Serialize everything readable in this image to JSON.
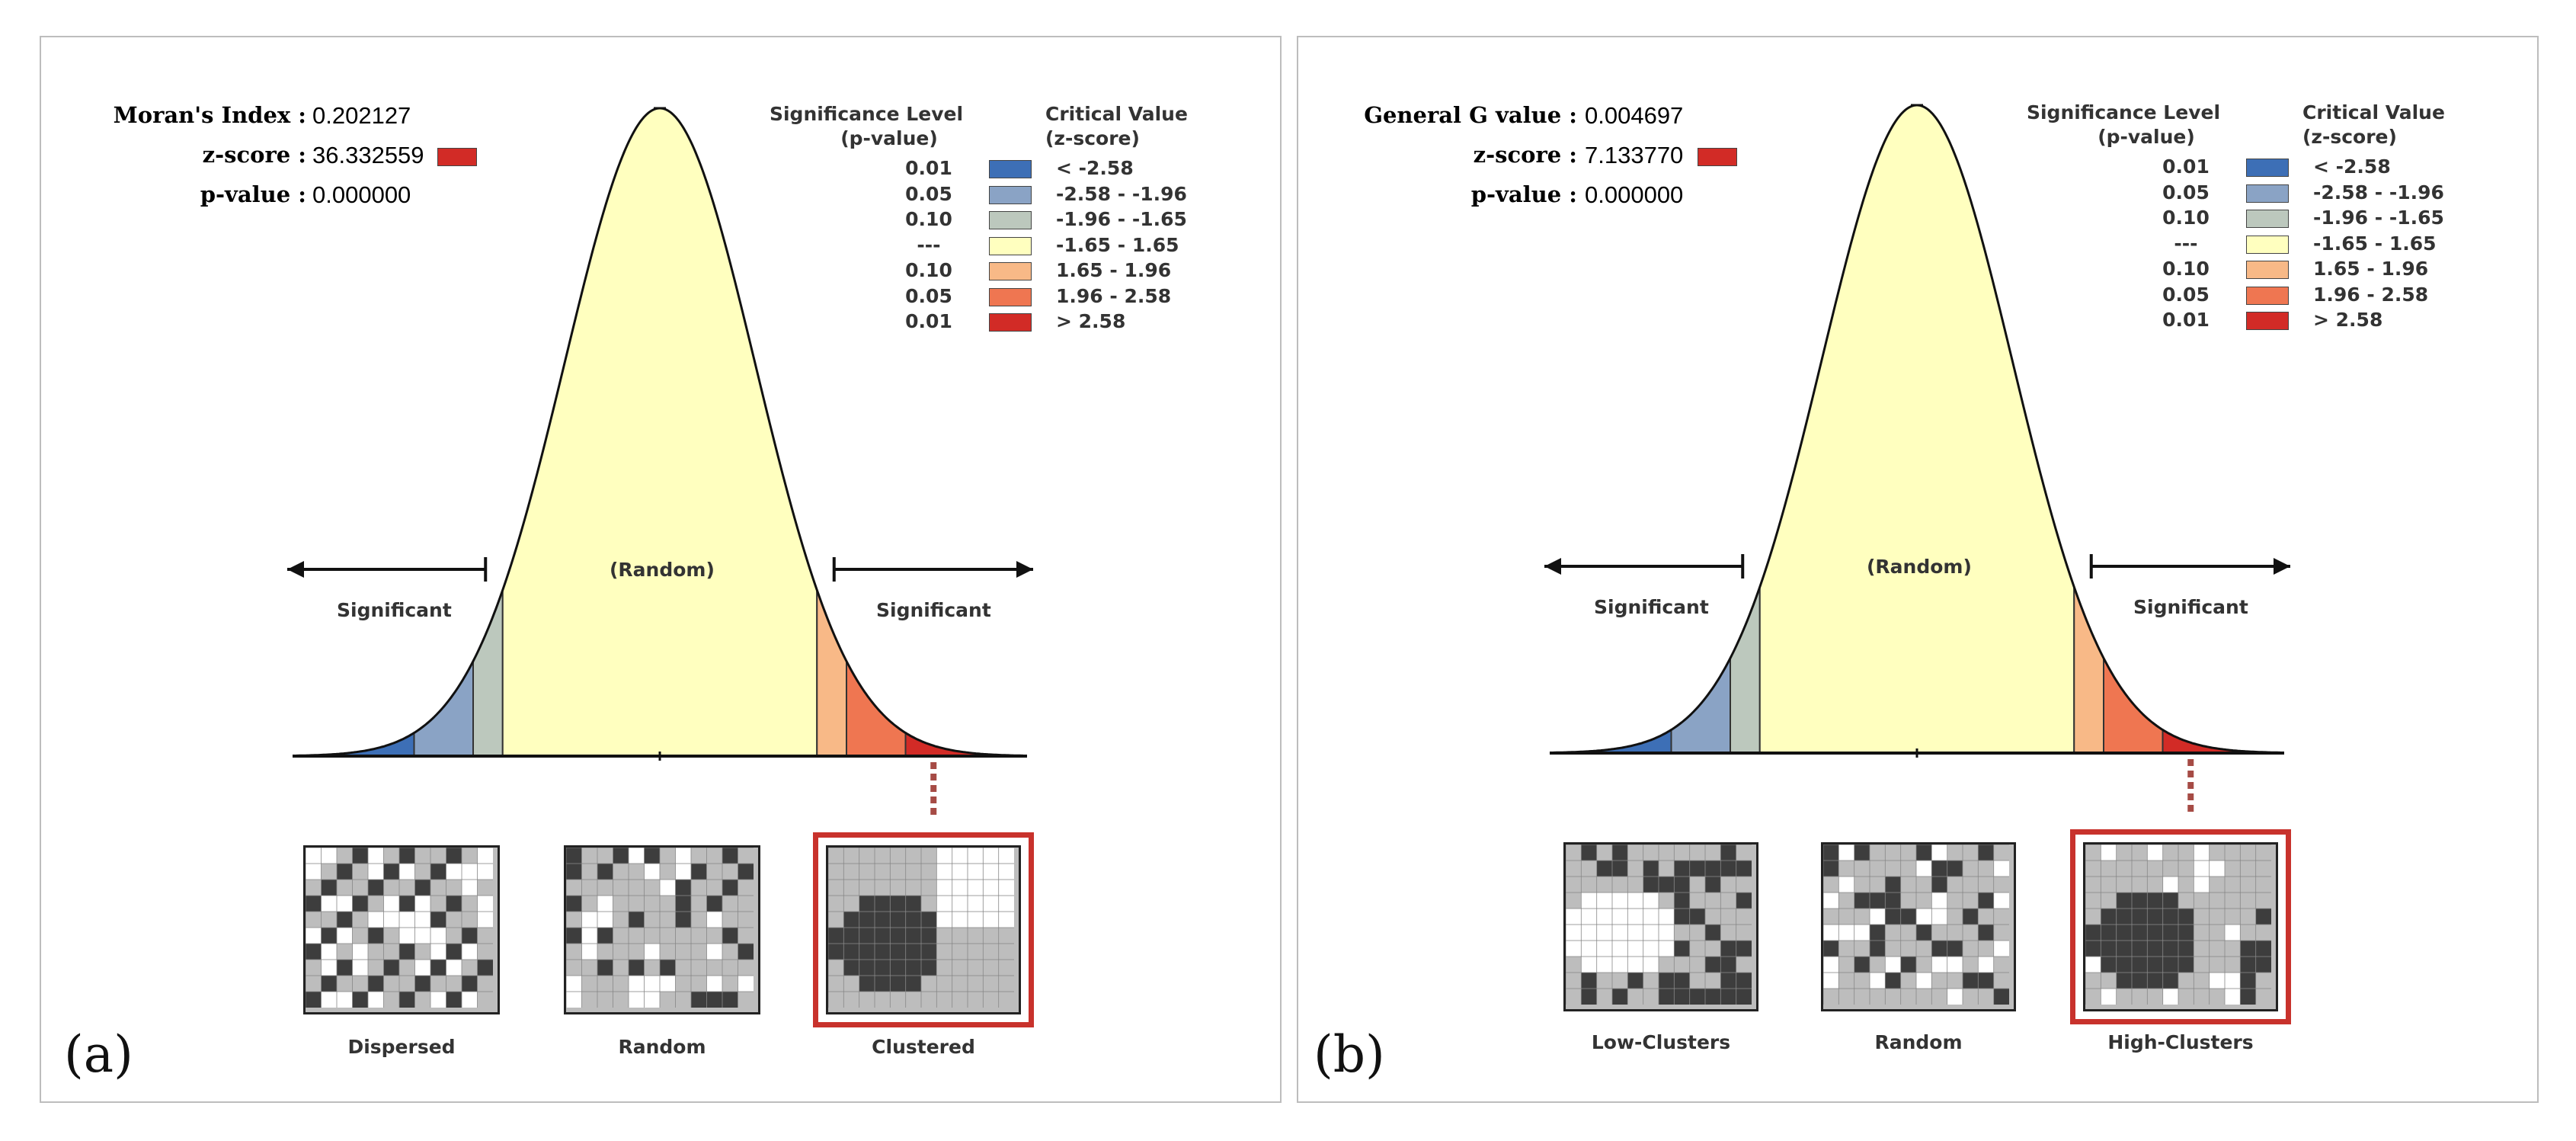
{
  "colors": {
    "bin_01_low": "#3d6fb6",
    "bin_05_low": "#8aa3c5",
    "bin_10_low": "#bcc8bd",
    "bin_random": "#ffffbf",
    "bin_10_high": "#f8b987",
    "bin_05_high": "#ef7651",
    "bin_01_high": "#d22b26",
    "map_dark": "#3d3d3d",
    "map_mid": "#bdbdbd",
    "map_light": "#ffffff",
    "highlight": "#c8322c"
  },
  "panels": {
    "a": {
      "letter": "(a)",
      "stats": [
        {
          "label": "Moran's Index :",
          "value": "0.202127"
        },
        {
          "label": "z-score :",
          "value": "36.332559"
        },
        {
          "label": "p-value :",
          "value": "0.000000"
        }
      ],
      "legend": {
        "significance_header_line1": "Significance Level",
        "significance_header_line2": "(p-value)",
        "critical_header_line1": "Critical Value",
        "critical_header_line2": "(z-score)",
        "rows": [
          {
            "p": "0.01",
            "z": "< -2.58"
          },
          {
            "p": "0.05",
            "z": "-2.58 - -1.96"
          },
          {
            "p": "0.10",
            "z": "-1.96 - -1.65"
          },
          {
            "p": "---",
            "z": "-1.65 - 1.65"
          },
          {
            "p": "0.10",
            "z": "1.65 - 1.96"
          },
          {
            "p": "0.05",
            "z": "1.96 - 2.58"
          },
          {
            "p": "0.01",
            "z": "> 2.58"
          }
        ]
      },
      "labels": {
        "left": "Significant",
        "center": "(Random)",
        "right": "Significant"
      },
      "maps": [
        {
          "label": "Dispersed",
          "pattern": "dispersed"
        },
        {
          "label": "Random",
          "pattern": "random"
        },
        {
          "label": "Clustered",
          "pattern": "clustered"
        }
      ]
    },
    "b": {
      "letter": "(b)",
      "stats": [
        {
          "label": "General G value :",
          "value": "0.004697"
        },
        {
          "label": "z-score :",
          "value": "7.133770"
        },
        {
          "label": "p-value :",
          "value": "0.000000"
        }
      ],
      "legend": {
        "significance_header_line1": "Significance Level",
        "significance_header_line2": "(p-value)",
        "critical_header_line1": "Critical Value",
        "critical_header_line2": "(z-score)",
        "rows": [
          {
            "p": "0.01",
            "z": "< -2.58"
          },
          {
            "p": "0.05",
            "z": "-2.58 - -1.96"
          },
          {
            "p": "0.10",
            "z": "-1.96 - -1.65"
          },
          {
            "p": "---",
            "z": "-1.65 - 1.65"
          },
          {
            "p": "0.10",
            "z": "1.65 - 1.96"
          },
          {
            "p": "0.05",
            "z": "1.96 - 2.58"
          },
          {
            "p": "0.01",
            "z": "> 2.58"
          }
        ]
      },
      "labels": {
        "left": "Significant",
        "center": "(Random)",
        "right": "Significant"
      },
      "maps": [
        {
          "label": "Low-Clusters",
          "pattern": "lowclusters"
        },
        {
          "label": "Random",
          "pattern": "random"
        },
        {
          "label": "High-Clusters",
          "pattern": "highclusters"
        }
      ]
    }
  }
}
